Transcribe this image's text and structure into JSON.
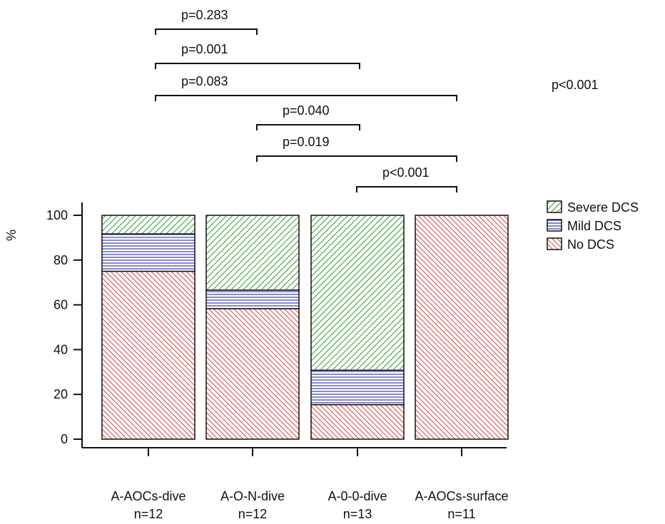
{
  "chart_data": {
    "type": "bar",
    "stacked": true,
    "title": "",
    "xlabel": "",
    "ylabel": "%",
    "ylim": [
      0,
      100
    ],
    "yticks": [
      "0",
      "20",
      "40",
      "60",
      "80",
      "100"
    ],
    "grid": false,
    "legend_position": "right",
    "categories": [
      {
        "name": "A-AOCs-dive",
        "n": "n=12"
      },
      {
        "name": "A-O-N-dive",
        "n": "n=12"
      },
      {
        "name": "A-0-0-dive",
        "n": "n=13"
      },
      {
        "name": "A-AOCs-surface",
        "n": "n=11"
      }
    ],
    "series": [
      {
        "name": "No DCS",
        "color": "#d62b2b",
        "pattern": "diagonal-dense-back",
        "values": [
          75,
          58.3,
          15.4,
          100
        ]
      },
      {
        "name": "Mild DCS",
        "color": "#3a3ab8",
        "pattern": "horizontal",
        "values": [
          16.7,
          8.3,
          15.4,
          0
        ]
      },
      {
        "name": "Severe DCS",
        "color": "#2f9a2f",
        "pattern": "diagonal-forward",
        "values": [
          8.3,
          33.4,
          69.2,
          0
        ]
      }
    ],
    "legend": [
      {
        "label": "Severe DCS",
        "series": 2
      },
      {
        "label": "Mild DCS",
        "series": 1
      },
      {
        "label": "No DCS",
        "series": 0
      }
    ],
    "comparisons": [
      {
        "from": 0,
        "to": 1,
        "label": "p=0.283"
      },
      {
        "from": 0,
        "to": 2,
        "label": "p=0.001"
      },
      {
        "from": 0,
        "to": 3,
        "label": "p=0.083"
      },
      {
        "from": 1,
        "to": 2,
        "label": "p=0.040"
      },
      {
        "from": 1,
        "to": 3,
        "label": "p=0.019"
      },
      {
        "from": 2,
        "to": 3,
        "label": "p<0.001"
      }
    ],
    "overall_p": "p<0.001"
  }
}
